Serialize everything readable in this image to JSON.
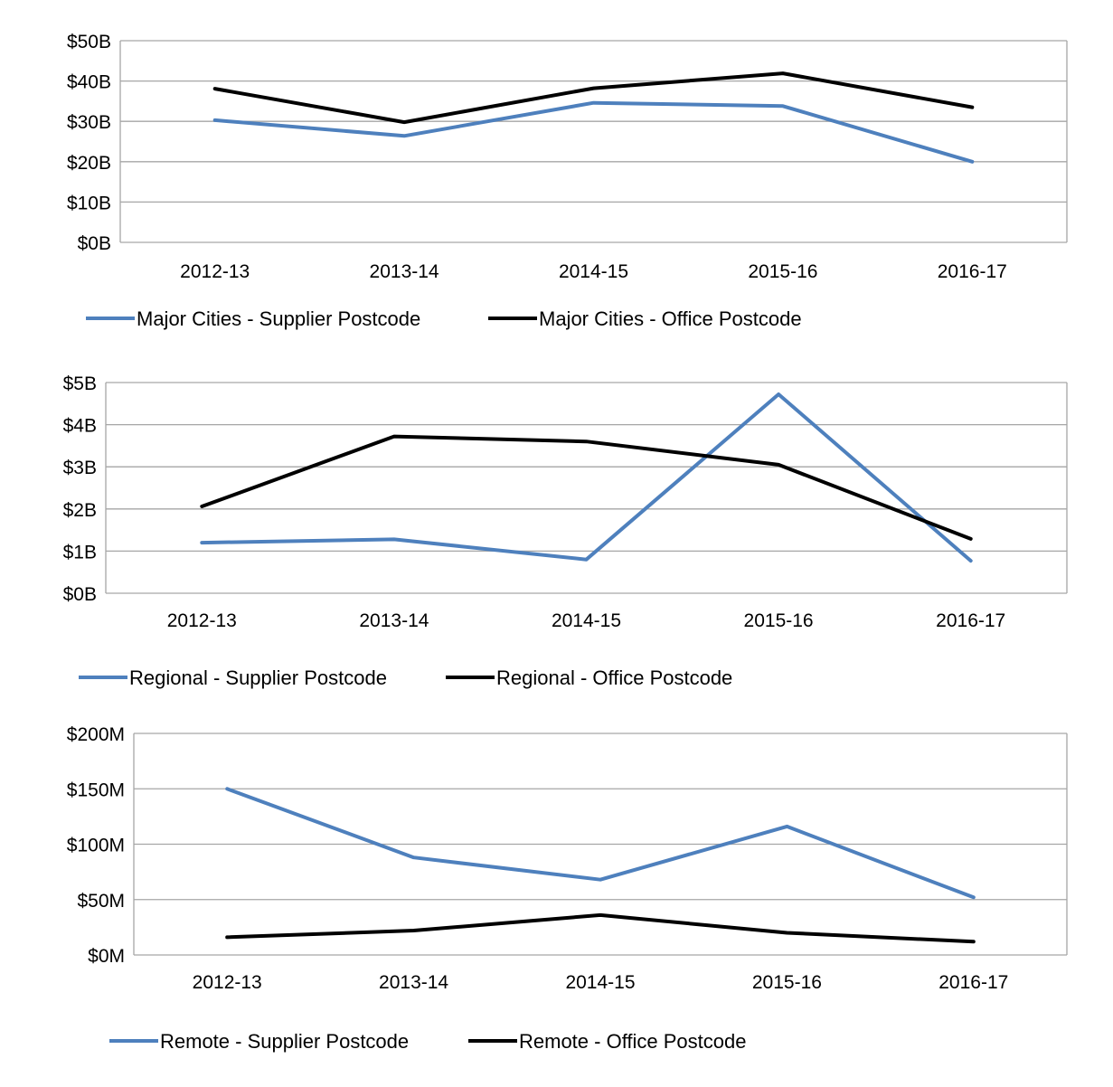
{
  "colors": {
    "supplier": "#4e80bd",
    "office": "#000000",
    "grid": "#a6a6a6"
  },
  "chart_data": [
    {
      "type": "line",
      "categories": [
        "2012-13",
        "2013-14",
        "2014-15",
        "2015-16",
        "2016-17"
      ],
      "ylim": [
        0,
        50
      ],
      "yticks": [
        0,
        10,
        20,
        30,
        40,
        50
      ],
      "ytick_labels": [
        "$0B",
        "$10B",
        "$20B",
        "$30B",
        "$40B",
        "$50B"
      ],
      "grid": true,
      "legend_position": "bottom",
      "series": [
        {
          "name": "Major Cities - Supplier Postcode",
          "color": "#4e80bd",
          "values": [
            30.3,
            26.4,
            34.6,
            33.8,
            20.0
          ]
        },
        {
          "name": "Major Cities - Office Postcode",
          "color": "#000000",
          "values": [
            38.1,
            29.8,
            38.2,
            41.9,
            33.5
          ]
        }
      ]
    },
    {
      "type": "line",
      "categories": [
        "2012-13",
        "2013-14",
        "2014-15",
        "2015-16",
        "2016-17"
      ],
      "ylim": [
        0,
        5
      ],
      "yticks": [
        0,
        1,
        2,
        3,
        4,
        5
      ],
      "ytick_labels": [
        "$0B",
        "$1B",
        "$2B",
        "$3B",
        "$4B",
        "$5B"
      ],
      "grid": true,
      "legend_position": "bottom",
      "series": [
        {
          "name": "Regional - Supplier Postcode",
          "color": "#4e80bd",
          "values": [
            1.2,
            1.28,
            0.8,
            4.72,
            0.77
          ]
        },
        {
          "name": "Regional - Office Postcode",
          "color": "#000000",
          "values": [
            2.06,
            3.72,
            3.6,
            3.05,
            1.29
          ]
        }
      ]
    },
    {
      "type": "line",
      "categories": [
        "2012-13",
        "2013-14",
        "2014-15",
        "2015-16",
        "2016-17"
      ],
      "ylim": [
        0,
        200
      ],
      "yticks": [
        0,
        50,
        100,
        150,
        200
      ],
      "ytick_labels": [
        "$0M",
        "$50M",
        "$100M",
        "$150M",
        "$200M"
      ],
      "grid": true,
      "legend_position": "bottom",
      "series": [
        {
          "name": "Remote - Supplier Postcode",
          "color": "#4e80bd",
          "values": [
            150,
            88,
            68,
            116,
            52
          ]
        },
        {
          "name": "Remote - Office Postcode",
          "color": "#000000",
          "values": [
            16,
            22,
            36,
            20,
            12
          ]
        }
      ]
    }
  ]
}
